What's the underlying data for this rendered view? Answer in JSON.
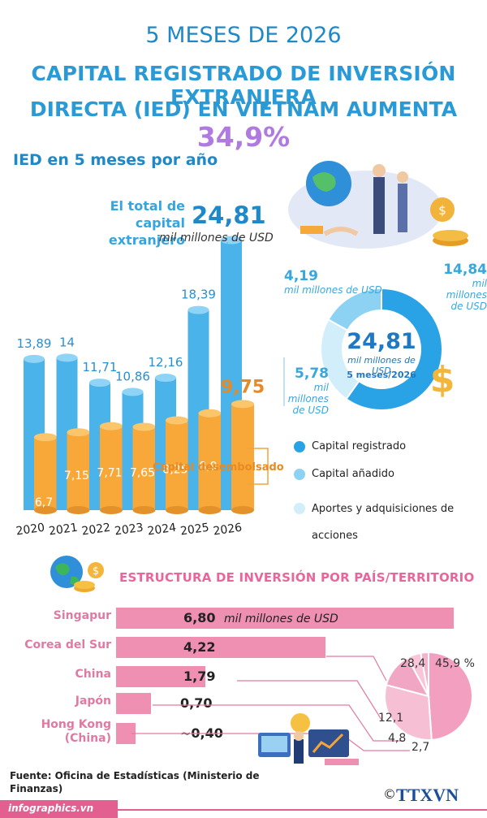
{
  "header": {
    "line1": "5 MESES DE 2026",
    "line2": "CAPITAL REGISTRADO DE INVERSIÓN EXTRANJERA",
    "line3": "DIRECTA (IED) EN VIETNAM AUMENTA ",
    "line3_pct": "34,9%"
  },
  "section1": {
    "title": "IED en 5 meses por año",
    "total_label": "El total de capital extranjero",
    "total_value": "24,81",
    "total_unit": "mil millones de USD",
    "disbursed_label": "Capital desembolsado"
  },
  "donut": {
    "center_value": "24,81",
    "center_unit": "mil millones de USD",
    "center_period": "5 meses/2026",
    "slices": [
      {
        "value": "14,84",
        "unit": "mil millones de USD",
        "num": 14.84,
        "color": "#29a3e6"
      },
      {
        "value": "4,19",
        "unit": "mil millones de USD",
        "num": 4.19,
        "color": "#8dd2f3"
      },
      {
        "value": "5,78",
        "unit": "mil millones de USD",
        "num": 5.78,
        "color": "#d2eefb"
      }
    ],
    "legend": [
      {
        "label": "Capital registrado",
        "color": "#29a3e6"
      },
      {
        "label": "Capital añadido",
        "color": "#8dd2f3"
      },
      {
        "label": "Aportes y adquisiciones de acciones",
        "color": "#d2eefb"
      }
    ]
  },
  "chart_data": [
    {
      "type": "bar",
      "categories": [
        "2020",
        "2021",
        "2022",
        "2023",
        "2024",
        "2025",
        "2026"
      ],
      "series": [
        {
          "name": "El total de capital extranjero",
          "values": [
            13.89,
            14,
            11.71,
            10.86,
            12.16,
            18.39,
            24.81
          ],
          "labels": [
            "13,89",
            "14",
            "11,71",
            "10,86",
            "12,16",
            "18,39",
            "24,81"
          ],
          "color": "#4ab4ea"
        },
        {
          "name": "Capital desembolsado",
          "values": [
            6.7,
            7.15,
            7.71,
            7.65,
            8.25,
            8.9,
            9.75
          ],
          "labels": [
            "6,7",
            "7,15",
            "7,71",
            "7,65",
            "8,25",
            "8,9",
            "9,75"
          ],
          "color": "#f7a839"
        }
      ]
    },
    {
      "type": "bar",
      "title": "ESTRUCTURA DE INVERSIÓN POR PAÍS/TERRITORIO",
      "categories": [
        "Singapur",
        "Corea del Sur",
        "China",
        "Japón",
        "Hong Kong (China)"
      ],
      "values": [
        6.8,
        4.22,
        1.79,
        0.7,
        0.4
      ],
      "labels": [
        "6,80",
        "4,22",
        "1,79",
        "0,70",
        "~0,40"
      ],
      "unit": "mil millones de USD"
    },
    {
      "type": "pie",
      "values": [
        45.9,
        28.4,
        12.1,
        4.8,
        2.7
      ],
      "labels": [
        "45,9 %",
        "28,4",
        "12,1",
        "4,8",
        "2,7"
      ]
    }
  ],
  "source": "Fuente: Oficina de Estadísticas (Ministerio de Finanzas)",
  "footer": {
    "website": "infographics.vn",
    "copyright": "©",
    "logo": "TTXVN"
  }
}
